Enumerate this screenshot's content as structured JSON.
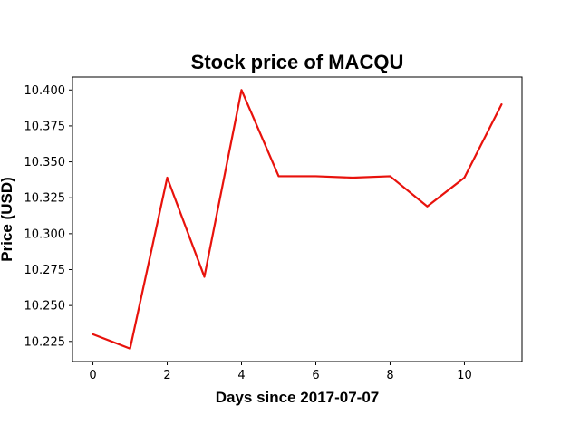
{
  "chart_data": {
    "type": "line",
    "title": "Stock price of MACQU",
    "xlabel": "Days since 2017-07-07",
    "ylabel": "Price (USD)",
    "x": [
      0,
      1,
      2,
      3,
      4,
      5,
      6,
      7,
      8,
      9,
      10,
      11
    ],
    "series": [
      {
        "values": [
          10.23,
          10.22,
          10.339,
          10.27,
          10.4,
          10.34,
          10.34,
          10.339,
          10.34,
          10.319,
          10.339,
          10.39
        ],
        "color": "#e8120c"
      }
    ],
    "xlim": [
      -0.55,
      11.55
    ],
    "ylim": [
      10.211,
      10.409
    ],
    "xticks": [
      0,
      2,
      4,
      6,
      8,
      10
    ],
    "xtick_labels": [
      "0",
      "2",
      "4",
      "6",
      "8",
      "10"
    ],
    "yticks": [
      10.225,
      10.25,
      10.275,
      10.3,
      10.325,
      10.35,
      10.375,
      10.4
    ],
    "ytick_labels": [
      "10.225",
      "10.250",
      "10.275",
      "10.300",
      "10.325",
      "10.350",
      "10.375",
      "10.400"
    ],
    "grid": false,
    "legend": false
  }
}
